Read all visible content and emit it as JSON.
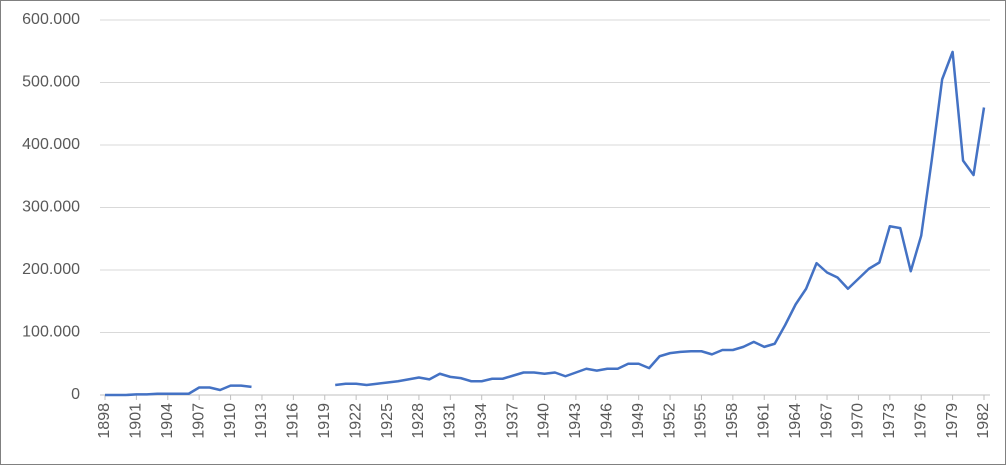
{
  "chart_data": {
    "type": "line",
    "x": [
      1898,
      1899,
      1900,
      1901,
      1902,
      1903,
      1904,
      1905,
      1906,
      1907,
      1908,
      1909,
      1910,
      1911,
      1912,
      1913,
      1914,
      1915,
      1916,
      1917,
      1918,
      1919,
      1920,
      1921,
      1922,
      1923,
      1924,
      1925,
      1926,
      1927,
      1928,
      1929,
      1930,
      1931,
      1932,
      1933,
      1934,
      1935,
      1936,
      1937,
      1938,
      1939,
      1940,
      1941,
      1942,
      1943,
      1944,
      1945,
      1946,
      1947,
      1948,
      1949,
      1950,
      1951,
      1952,
      1953,
      1954,
      1955,
      1956,
      1957,
      1958,
      1959,
      1960,
      1961,
      1962,
      1963,
      1964,
      1965,
      1966,
      1967,
      1968,
      1969,
      1970,
      1971,
      1972,
      1973,
      1974,
      1975,
      1976,
      1977,
      1978,
      1979,
      1980,
      1981,
      1982
    ],
    "series": [
      {
        "color": "#4472c4",
        "values": [
          0,
          0,
          0,
          1000,
          1000,
          2000,
          2000,
          2000,
          2000,
          12000,
          12000,
          8000,
          15000,
          15000,
          13000,
          null,
          null,
          null,
          null,
          null,
          null,
          null,
          16000,
          18000,
          18000,
          16000,
          18000,
          20000,
          22000,
          25000,
          28000,
          25000,
          34000,
          29000,
          27000,
          22000,
          22000,
          26000,
          26000,
          31000,
          36000,
          36000,
          34000,
          36000,
          30000,
          36000,
          42000,
          39000,
          42000,
          42000,
          50000,
          50000,
          43000,
          62000,
          67000,
          69000,
          70000,
          70000,
          65000,
          72000,
          72000,
          77000,
          85000,
          77000,
          82000,
          112000,
          145000,
          170000,
          211000,
          196000,
          188000,
          170000,
          186000,
          202000,
          212000,
          270000,
          267000,
          198000,
          255000,
          375000,
          505000,
          549000,
          375000,
          352000,
          460000
        ]
      }
    ],
    "xlim": [
      1898,
      1982
    ],
    "xticks": [
      1898,
      1901,
      1904,
      1907,
      1910,
      1913,
      1916,
      1919,
      1922,
      1925,
      1928,
      1931,
      1934,
      1937,
      1940,
      1943,
      1946,
      1949,
      1952,
      1955,
      1958,
      1961,
      1964,
      1967,
      1970,
      1973,
      1976,
      1979,
      1982
    ],
    "ylim": [
      0,
      600000
    ],
    "yticks": [
      0,
      {
        "value": 100000,
        "label": "100.000"
      },
      {
        "value": 200000,
        "label": "200.000"
      },
      {
        "value": 300000,
        "label": "300.000"
      },
      {
        "value": 400000,
        "label": "400.000"
      },
      {
        "value": 500000,
        "label": "500.000"
      },
      {
        "value": 600000,
        "label": "600.000"
      }
    ],
    "grid": true
  }
}
